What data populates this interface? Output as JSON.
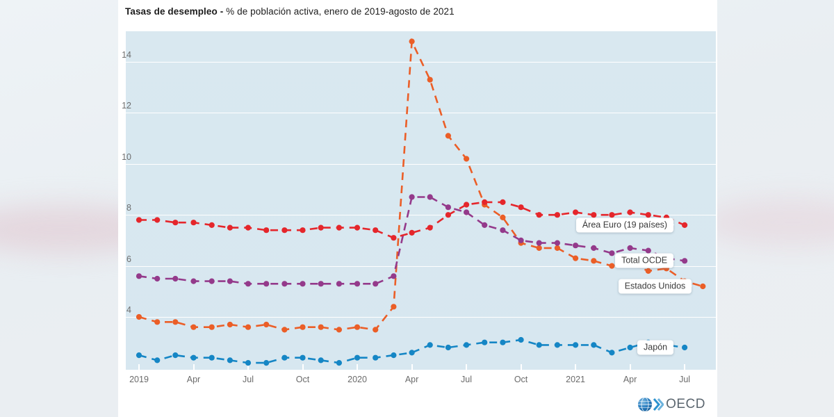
{
  "chart": {
    "title_bold": "Tasas de desempleo -",
    "title_rest": " % de población activa, enero de 2019-agosto de 2021",
    "plot_bg": "#d8e7f0",
    "grid_color": "#ffffff",
    "axis_text_color": "#6a6a6a"
  },
  "branding": {
    "logo_text": "OECD",
    "globe_color": "#1a75bc",
    "chevron_color": "#2e93cf",
    "wordmark_color": "#5b666f"
  },
  "chart_data": {
    "type": "line",
    "title": "Tasas de desempleo - % de población activa, enero de 2019-agosto de 2021",
    "x_unit": "month",
    "x_start": "2019-01",
    "x_end": "2021-08",
    "grid": "horizontal-white-on-lightblue",
    "legend_position": "end-of-line-callouts",
    "marker_style": "dashed-line-with-dots",
    "y_ticks": [
      14,
      12,
      10,
      8,
      6,
      4
    ],
    "ylim": [
      1.9,
      15.2
    ],
    "x_ticks": [
      {
        "label": "2019",
        "month": 0
      },
      {
        "label": "Apr",
        "month": 3
      },
      {
        "label": "Jul",
        "month": 6
      },
      {
        "label": "Oct",
        "month": 9
      },
      {
        "label": "2020",
        "month": 12
      },
      {
        "label": "Apr",
        "month": 15
      },
      {
        "label": "Jul",
        "month": 18
      },
      {
        "label": "Oct",
        "month": 21
      },
      {
        "label": "2021",
        "month": 24
      },
      {
        "label": "Apr",
        "month": 27
      },
      {
        "label": "Jul",
        "month": 30
      }
    ],
    "series": [
      {
        "name": "Estados Unidos",
        "color": "#eb5e27",
        "values": [
          4.0,
          3.8,
          3.8,
          3.6,
          3.6,
          3.7,
          3.6,
          3.7,
          3.5,
          3.6,
          3.6,
          3.5,
          3.6,
          3.5,
          4.4,
          14.8,
          13.3,
          11.1,
          10.2,
          8.4,
          7.9,
          6.9,
          6.7,
          6.7,
          6.3,
          6.2,
          6.0,
          6.1,
          5.8,
          5.9,
          5.4,
          5.2
        ]
      },
      {
        "name": "Total OCDE",
        "color": "#943a8b",
        "values": [
          5.6,
          5.5,
          5.5,
          5.4,
          5.4,
          5.4,
          5.3,
          5.3,
          5.3,
          5.3,
          5.3,
          5.3,
          5.3,
          5.3,
          5.6,
          8.7,
          8.7,
          8.3,
          8.1,
          7.6,
          7.4,
          7.0,
          6.9,
          6.9,
          6.8,
          6.7,
          6.5,
          6.7,
          6.6,
          6.3,
          6.2
        ]
      },
      {
        "name": "Área Euro (19 países)",
        "color": "#e5262b",
        "values": [
          7.8,
          7.8,
          7.7,
          7.7,
          7.6,
          7.5,
          7.5,
          7.4,
          7.4,
          7.4,
          7.5,
          7.5,
          7.5,
          7.4,
          7.1,
          7.3,
          7.5,
          8.0,
          8.4,
          8.5,
          8.5,
          8.3,
          8.0,
          8.0,
          8.1,
          8.0,
          8.0,
          8.1,
          8.0,
          7.9,
          7.6
        ]
      },
      {
        "name": "Japón",
        "color": "#1586c5",
        "values": [
          2.5,
          2.3,
          2.5,
          2.4,
          2.4,
          2.3,
          2.2,
          2.2,
          2.4,
          2.4,
          2.3,
          2.2,
          2.4,
          2.4,
          2.5,
          2.6,
          2.9,
          2.8,
          2.9,
          3.0,
          3.0,
          3.1,
          2.9,
          2.9,
          2.9,
          2.9,
          2.6,
          2.8,
          3.0,
          2.9,
          2.8
        ]
      }
    ]
  }
}
